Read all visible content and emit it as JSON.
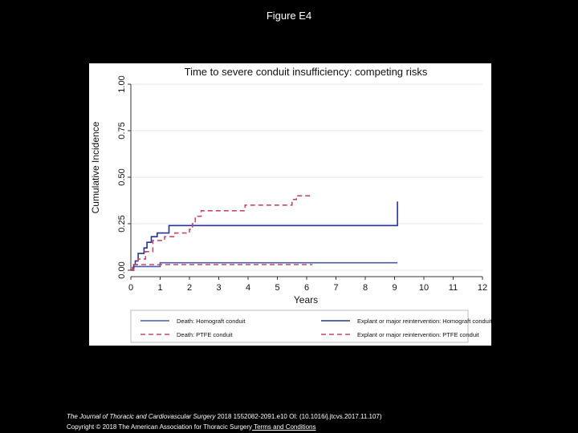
{
  "figure_title": "Figure E4",
  "footer": {
    "journal": "The Journal of Thoracic and Cardiovascular Surgery",
    "citation": " 2018 1552082-2091.e10 OI: (10.1016/j.jtcvs.2017.11.107)",
    "copyright": "Copyright © 2018 The American Association for Thoracic Surgery",
    "terms_link": " Terms and Conditions"
  },
  "colors": {
    "homograft": "#27348f",
    "ptfe": "#c44a6a",
    "death_homograft": "#4a5aa6",
    "grid": "#dfe7ea"
  },
  "chart_data": {
    "type": "line",
    "title": "Time to severe conduit insufficiency: competing risks",
    "xlabel": "Years",
    "ylabel": "Cumulative Incidence",
    "xlim": [
      0,
      12
    ],
    "ylim": [
      0,
      1
    ],
    "xticks": [
      0,
      1,
      2,
      3,
      4,
      5,
      6,
      7,
      8,
      9,
      10,
      11,
      12
    ],
    "yticks": [
      "0.00",
      "0.25",
      "0.50",
      "0.75",
      "1.00"
    ],
    "grid": true,
    "legend_position": "bottom",
    "series": [
      {
        "name": "Death: Homograft conduit",
        "style": "solid",
        "color": "death_homograft",
        "x": [
          0,
          0.1,
          0.1,
          1.0,
          1.0,
          9.1
        ],
        "y": [
          0,
          0,
          0.02,
          0.02,
          0.04,
          0.04
        ]
      },
      {
        "name": "Explant or major reintervention: Homograft conduit",
        "style": "solid",
        "color": "homograft",
        "x": [
          0,
          0.1,
          0.1,
          0.15,
          0.15,
          0.25,
          0.25,
          0.45,
          0.45,
          0.55,
          0.55,
          0.7,
          0.7,
          0.9,
          0.9,
          1.3,
          1.3,
          9.1,
          9.1
        ],
        "y": [
          0,
          0,
          0.03,
          0.03,
          0.05,
          0.05,
          0.09,
          0.09,
          0.12,
          0.12,
          0.15,
          0.15,
          0.18,
          0.18,
          0.2,
          0.2,
          0.24,
          0.24,
          0.37
        ]
      },
      {
        "name": "Death: PTFE conduit",
        "style": "dashed",
        "color": "ptfe",
        "x": [
          0,
          0.05,
          0.05,
          6.2
        ],
        "y": [
          0,
          0,
          0.03,
          0.03
        ]
      },
      {
        "name": "Explant or major reintervention: PTFE conduit",
        "style": "dashed",
        "color": "ptfe",
        "x": [
          0,
          0.1,
          0.1,
          0.25,
          0.25,
          0.5,
          0.5,
          0.75,
          0.75,
          1.15,
          1.15,
          1.5,
          1.5,
          2.0,
          2.0,
          2.1,
          2.1,
          2.2,
          2.2,
          2.4,
          2.4,
          3.9,
          3.9,
          5.5,
          5.5,
          5.65,
          5.65,
          6.2
        ],
        "y": [
          0,
          0,
          0.03,
          0.03,
          0.06,
          0.06,
          0.1,
          0.1,
          0.16,
          0.16,
          0.18,
          0.18,
          0.2,
          0.2,
          0.22,
          0.22,
          0.25,
          0.25,
          0.29,
          0.29,
          0.32,
          0.32,
          0.35,
          0.35,
          0.38,
          0.38,
          0.4,
          0.4
        ]
      }
    ]
  }
}
